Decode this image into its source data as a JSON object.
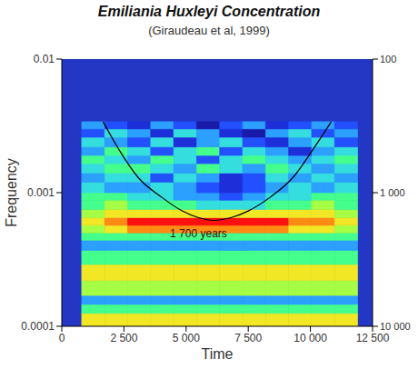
{
  "chart_data": {
    "type": "heatmap",
    "title": "Emiliania Huxleyi Concentration",
    "subtitle": "(Giraudeau et al, 1999)",
    "x_label": "Time",
    "y_label": "Frequency",
    "log": "y",
    "xlim": [
      0,
      12500
    ],
    "xticks": [
      0,
      {
        "value": 2500,
        "label": "2 500"
      },
      {
        "value": 5000,
        "label": "5 000"
      },
      {
        "value": 7500,
        "label": "7 500"
      },
      {
        "value": 10000,
        "label": "10 000"
      },
      {
        "value": 12500,
        "label": "12 500"
      }
    ],
    "ylim": [
      0.0001,
      0.01
    ],
    "yticks": [
      0.0001,
      0.001,
      0.01
    ],
    "y2lim": [
      100,
      10000
    ],
    "y2ticks": [
      100,
      {
        "value": 1000,
        "label": "1 000"
      },
      {
        "value": 10000,
        "label": "10 000"
      }
    ],
    "x_edges": [
      800,
      1725,
      2650,
      3575,
      4500,
      5425,
      6350,
      7275,
      8200,
      9125,
      10050,
      10975,
      11900
    ],
    "y_edges": [
      0.0001,
      0.000125,
      0.000146,
      0.00017,
      0.00022,
      0.00029,
      0.00037,
      0.00044,
      0.0005,
      0.00057,
      0.00065,
      0.00075,
      0.00088,
      0.001,
      0.0012,
      0.0014,
      0.00165,
      0.0019,
      0.0022,
      0.0026,
      0.003,
      0.0034
    ],
    "cells": [
      [
        8,
        8,
        8,
        8,
        8,
        8,
        8,
        8,
        8,
        8,
        8,
        8
      ],
      [
        6,
        6,
        6,
        6,
        6,
        6,
        6,
        6,
        6,
        6,
        6,
        6
      ],
      [
        4,
        4,
        4,
        4,
        4,
        4,
        4,
        4,
        4,
        4,
        4,
        4
      ],
      [
        7,
        7,
        7,
        7,
        7,
        7,
        7,
        7,
        7,
        7,
        7,
        7
      ],
      [
        8,
        8,
        8,
        8,
        8,
        8,
        8,
        8,
        8,
        8,
        8,
        8
      ],
      [
        6,
        6,
        6,
        6,
        6,
        6,
        6,
        6,
        6,
        6,
        6,
        6
      ],
      [
        4,
        4,
        4,
        4,
        4,
        4,
        4,
        4,
        4,
        4,
        4,
        4
      ],
      [
        6,
        6,
        6,
        6,
        6,
        6,
        6,
        6,
        6,
        6,
        6,
        6
      ],
      [
        7,
        8,
        9,
        9,
        9,
        9,
        9,
        9,
        9,
        8,
        8,
        7
      ],
      [
        8,
        9,
        10,
        10,
        10,
        10,
        10,
        10,
        10,
        9,
        9,
        8
      ],
      [
        7,
        8,
        8,
        8,
        8,
        8,
        8,
        8,
        8,
        8,
        8,
        7
      ],
      [
        6,
        7,
        6,
        6,
        6,
        5,
        5,
        5,
        6,
        6,
        7,
        6
      ],
      [
        6,
        6,
        5,
        5,
        4,
        4,
        3,
        4,
        5,
        5,
        6,
        6
      ],
      [
        5,
        4,
        4,
        5,
        4,
        3,
        2,
        3,
        4,
        5,
        4,
        5
      ],
      [
        4,
        5,
        5,
        3,
        5,
        4,
        2,
        3,
        5,
        4,
        5,
        4
      ],
      [
        5,
        6,
        6,
        5,
        4,
        6,
        5,
        4,
        6,
        5,
        4,
        5
      ],
      [
        6,
        5,
        4,
        6,
        5,
        3,
        5,
        6,
        5,
        4,
        5,
        6
      ],
      [
        4,
        6,
        5,
        3,
        5,
        6,
        3,
        5,
        4,
        2,
        4,
        5
      ],
      [
        5,
        4,
        3,
        5,
        2,
        4,
        5,
        3,
        2,
        4,
        5,
        3
      ],
      [
        3,
        5,
        4,
        2,
        5,
        4,
        2,
        1,
        4,
        5,
        3,
        4
      ],
      [
        4,
        3,
        2,
        4,
        3,
        1,
        3,
        4,
        2,
        3,
        4,
        3
      ]
    ],
    "curve": {
      "color": "#000000",
      "x": [
        1660,
        2300,
        3070,
        4000,
        4840,
        5500,
        6100,
        6800,
        7500,
        8400,
        9300,
        10100,
        10840
      ],
      "values": [
        0.0034,
        0.0021,
        0.0013,
        0.00093,
        0.00073,
        0.00065,
        0.00062,
        0.00065,
        0.00073,
        0.00093,
        0.0013,
        0.0021,
        0.0034
      ]
    },
    "annotations": [
      {
        "text": "1 700 years",
        "x": 5500,
        "y": 0.0005
      }
    ]
  }
}
